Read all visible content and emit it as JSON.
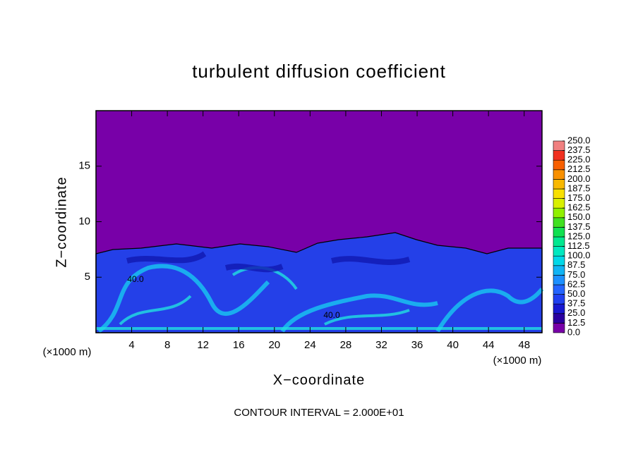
{
  "chart_data": {
    "type": "contour",
    "title": "turbulent diffusion coefficient",
    "xlabel": "X−coordinate",
    "ylabel": "Z−coordinate",
    "x_unit_labels": [
      "(×1000 m)",
      "(×1000 m)"
    ],
    "footer": "CONTOUR INTERVAL = 2.000E+01",
    "contour_labels": [
      "40.0",
      "40.0"
    ],
    "xlim": [
      0,
      50
    ],
    "xticks": [
      4,
      8,
      12,
      16,
      20,
      24,
      28,
      32,
      36,
      40,
      44,
      48
    ],
    "ylim": [
      0,
      20
    ],
    "yticks": [
      5,
      10,
      15
    ],
    "colorbar": {
      "levels": [
        {
          "value": 0,
          "label": "0.0"
        },
        {
          "value": 12.5,
          "label": "12.5"
        },
        {
          "value": 25,
          "label": "25.0"
        },
        {
          "value": 37.5,
          "label": "37.5"
        },
        {
          "value": 50,
          "label": "50.0"
        },
        {
          "value": 62.5,
          "label": "62.5"
        },
        {
          "value": 75,
          "label": "75.0"
        },
        {
          "value": 87.5,
          "label": "87.5"
        },
        {
          "value": 100,
          "label": "100.0"
        },
        {
          "value": 112.5,
          "label": "112.5"
        },
        {
          "value": 125,
          "label": "125.0"
        },
        {
          "value": 137.5,
          "label": "137.5"
        },
        {
          "value": 150,
          "label": "150.0"
        },
        {
          "value": 162.5,
          "label": "162.5"
        },
        {
          "value": 175,
          "label": "175.0"
        },
        {
          "value": 187.5,
          "label": "187.5"
        },
        {
          "value": 200,
          "label": "200.0"
        },
        {
          "value": 212.5,
          "label": "212.5"
        },
        {
          "value": 225,
          "label": "225.0"
        },
        {
          "value": 237.5,
          "label": "237.5"
        },
        {
          "value": 250,
          "label": "250.0"
        }
      ],
      "colors": [
        "#7800a8",
        "#2a00a0",
        "#1818d0",
        "#2040f0",
        "#2464ff",
        "#1c90ff",
        "#10b4f4",
        "#00d8e8",
        "#00e8c0",
        "#00e890",
        "#10e050",
        "#40e020",
        "#90f000",
        "#d8f000",
        "#f8e000",
        "#f8b800",
        "#f89000",
        "#f86000",
        "#f03020",
        "#f08080"
      ]
    }
  }
}
